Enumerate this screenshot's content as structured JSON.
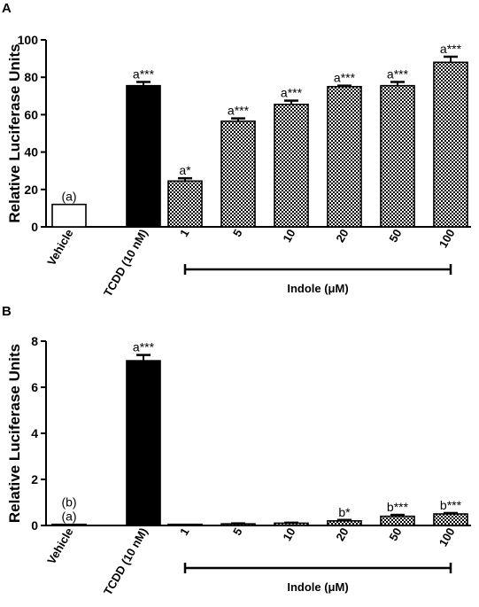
{
  "chart_data": [
    {
      "panel": "A",
      "type": "bar",
      "ylabel": "Relative Luciferase Units",
      "ylim": [
        0,
        100
      ],
      "yticks": [
        0,
        20,
        40,
        60,
        80,
        100
      ],
      "categories": [
        "Vehicle",
        "TCDD (10 nM)",
        "1",
        "5",
        "10",
        "20",
        "50",
        "100"
      ],
      "values": [
        12,
        75.5,
        24.5,
        56.5,
        65.5,
        75,
        75.5,
        88
      ],
      "errors": [
        0,
        2,
        1.5,
        1.5,
        2,
        0.5,
        2,
        3
      ],
      "fills": [
        "white",
        "black",
        "checker",
        "checker",
        "checker",
        "checker",
        "checker",
        "checker"
      ],
      "annotations": [
        [
          "(a)"
        ],
        [
          "a***"
        ],
        [
          "a*"
        ],
        [
          "a***"
        ],
        [
          "a***"
        ],
        [
          "a***"
        ],
        [
          "a***"
        ],
        [
          "a***"
        ]
      ],
      "group_label": "Indole (μM)",
      "group_start": 2,
      "group_end": 7
    },
    {
      "panel": "B",
      "type": "bar",
      "ylabel": "Relative Luciferase Units",
      "ylim": [
        0,
        8
      ],
      "yticks": [
        0,
        2,
        4,
        6,
        8
      ],
      "categories": [
        "Vehicle",
        "TCDD (10 nM)",
        "1",
        "5",
        "10",
        "20",
        "50",
        "100"
      ],
      "values": [
        0.05,
        7.15,
        0.05,
        0.07,
        0.1,
        0.2,
        0.4,
        0.5
      ],
      "errors": [
        0,
        0.25,
        0,
        0.02,
        0.02,
        0.04,
        0.06,
        0.04
      ],
      "fills": [
        "white",
        "black",
        "checker",
        "checker",
        "checker",
        "checker",
        "checker",
        "checker"
      ],
      "annotations": [
        [
          "(b)",
          "(a)"
        ],
        [
          "a***"
        ],
        [],
        [],
        [],
        [
          "b*"
        ],
        [
          "b***"
        ],
        [
          "b***"
        ]
      ],
      "group_label": "Indole (μM)",
      "group_start": 2,
      "group_end": 7
    }
  ]
}
